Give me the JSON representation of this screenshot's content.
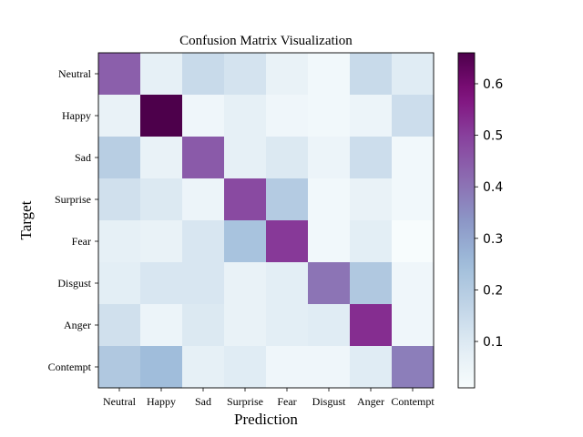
{
  "chart_data": {
    "type": "heatmap",
    "title": "Confusion Matrix Visualization",
    "xlabel": "Prediction",
    "ylabel": "Target",
    "x_categories": [
      "Neutral",
      "Happy",
      "Sad",
      "Surprise",
      "Fear",
      "Disgust",
      "Anger",
      "Contempt"
    ],
    "y_categories": [
      "Neutral",
      "Happy",
      "Sad",
      "Surprise",
      "Fear",
      "Disgust",
      "Anger",
      "Contempt"
    ],
    "values": [
      [
        0.44,
        0.07,
        0.15,
        0.12,
        0.06,
        0.03,
        0.15,
        0.09
      ],
      [
        0.06,
        0.66,
        0.04,
        0.07,
        0.04,
        0.03,
        0.05,
        0.14
      ],
      [
        0.19,
        0.06,
        0.45,
        0.07,
        0.1,
        0.05,
        0.14,
        0.03
      ],
      [
        0.13,
        0.1,
        0.05,
        0.48,
        0.2,
        0.03,
        0.06,
        0.03
      ],
      [
        0.07,
        0.06,
        0.11,
        0.23,
        0.51,
        0.03,
        0.08,
        0.01
      ],
      [
        0.08,
        0.11,
        0.11,
        0.06,
        0.08,
        0.4,
        0.21,
        0.04
      ],
      [
        0.13,
        0.05,
        0.1,
        0.06,
        0.08,
        0.09,
        0.53,
        0.04
      ],
      [
        0.21,
        0.25,
        0.07,
        0.09,
        0.04,
        0.04,
        0.09,
        0.38
      ]
    ],
    "colormap": "BuPu",
    "vmin": 0.01,
    "vmax": 0.66,
    "colorbar_ticks": [
      "0.1",
      "0.2",
      "0.3",
      "0.4",
      "0.5",
      "0.6"
    ],
    "colorbar_tick_values": [
      0.1,
      0.2,
      0.3,
      0.4,
      0.5,
      0.6
    ],
    "grid": false,
    "legend": "colorbar-right"
  }
}
